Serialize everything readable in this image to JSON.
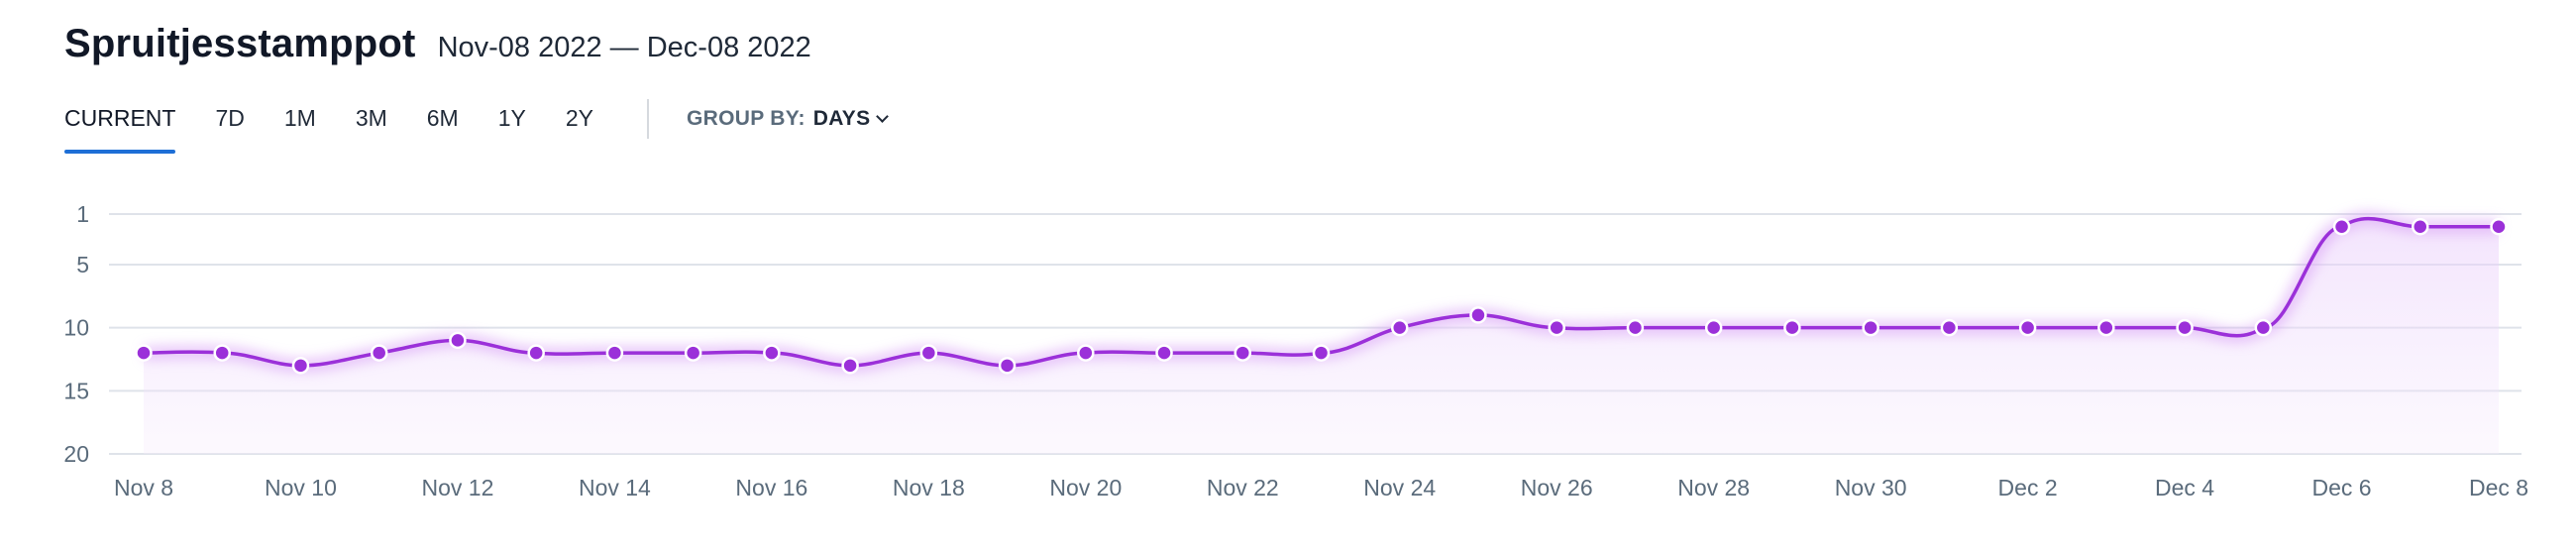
{
  "header": {
    "title": "Spruitjesstamppot",
    "date_range": "Nov-08 2022 — Dec-08 2022"
  },
  "tabs": [
    {
      "label": "CURRENT",
      "active": true
    },
    {
      "label": "7D",
      "active": false
    },
    {
      "label": "1M",
      "active": false
    },
    {
      "label": "3M",
      "active": false
    },
    {
      "label": "6M",
      "active": false
    },
    {
      "label": "1Y",
      "active": false
    },
    {
      "label": "2Y",
      "active": false
    }
  ],
  "group_by": {
    "label": "GROUP BY:",
    "value": "DAYS"
  },
  "colors": {
    "accent": "#1e6fd6",
    "series": "#9b30d9",
    "area": "#ead3f8",
    "grid": "#dfe3ea"
  },
  "chart_data": {
    "type": "line",
    "y_reversed": true,
    "ylim": [
      1,
      20
    ],
    "yticks": [
      1,
      5,
      10,
      15,
      20
    ],
    "grid": true,
    "x_tick_labels": [
      "Nov 8",
      "Nov 10",
      "Nov 12",
      "Nov 14",
      "Nov 16",
      "Nov 18",
      "Nov 20",
      "Nov 22",
      "Nov 24",
      "Nov 26",
      "Nov 28",
      "Nov 30",
      "Dec 2",
      "Dec 4",
      "Dec 6",
      "Dec 8"
    ],
    "x": [
      "Nov 8",
      "Nov 9",
      "Nov 10",
      "Nov 11",
      "Nov 12",
      "Nov 13",
      "Nov 14",
      "Nov 15",
      "Nov 16",
      "Nov 17",
      "Nov 18",
      "Nov 19",
      "Nov 20",
      "Nov 21",
      "Nov 22",
      "Nov 23",
      "Nov 24",
      "Nov 25",
      "Nov 26",
      "Nov 27",
      "Nov 28",
      "Nov 29",
      "Nov 30",
      "Dec 1",
      "Dec 2",
      "Dec 3",
      "Dec 4",
      "Dec 5",
      "Dec 6",
      "Dec 7",
      "Dec 8"
    ],
    "series": [
      {
        "values": [
          12,
          12,
          13,
          12,
          11,
          12,
          12,
          12,
          12,
          13,
          12,
          13,
          12,
          12,
          12,
          12,
          10,
          9,
          10,
          10,
          10,
          10,
          10,
          10,
          10,
          10,
          10,
          10,
          2,
          2,
          2
        ]
      }
    ]
  }
}
